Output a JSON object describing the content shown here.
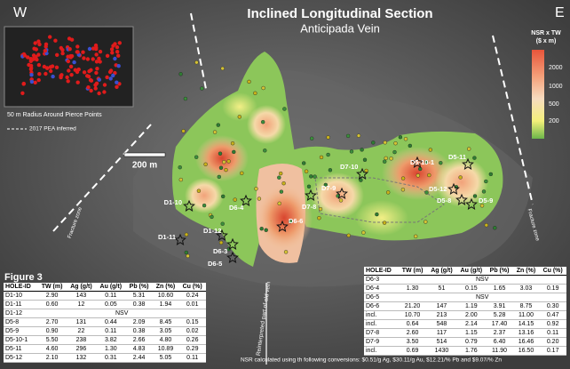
{
  "header": {
    "title": "Inclined Longitudinal Section",
    "subtitle": "Anticipada Vein",
    "west": "W",
    "east": "E"
  },
  "inset": {
    "caption": "50 m Radius Around Pierce Points",
    "legend_note": "2017 PEA inferred"
  },
  "scale_bar": {
    "label": "200 m"
  },
  "color_legend": {
    "title": "NSR x TW",
    "unit": "($ x m)",
    "labels": [
      "2000",
      "1000",
      "500",
      "200"
    ]
  },
  "annotations": {
    "left_fault": "Fracture zone",
    "bottom_note": "Reinterpreted part of old vein",
    "right_fault": "Fracture zone"
  },
  "stars": [
    "D1-10",
    "D6-4",
    "D7-8",
    "D7-9",
    "D7-10",
    "D5-10-1",
    "D5-11",
    "D5-12",
    "D5-8",
    "D5-9",
    "D6-6",
    "D1-11",
    "D1-12",
    "D6-3",
    "D6-5"
  ],
  "figure_label": "Figure 3",
  "table_left": {
    "columns": [
      "HOLE-ID",
      "TW (m)",
      "Ag (g/t)",
      "Au (g/t)",
      "Pb (%)",
      "Zn (%)",
      "Cu (%)"
    ],
    "rows": [
      [
        "D1-10",
        "2.90",
        "143",
        "0.11",
        "5.31",
        "10.60",
        "0.24"
      ],
      [
        "D1-11",
        "0.60",
        "12",
        "0.05",
        "0.38",
        "1.94",
        "0.01"
      ],
      [
        "D1-12",
        "NSV"
      ],
      [
        "D5-8",
        "2.70",
        "131",
        "0.44",
        "2.09",
        "8.45",
        "0.15"
      ],
      [
        "D5-9",
        "0.90",
        "22",
        "0.11",
        "0.38",
        "3.05",
        "0.02"
      ],
      [
        "D5-10-1",
        "5.50",
        "238",
        "3.82",
        "2.66",
        "4.80",
        "0.26"
      ],
      [
        "D5-11",
        "4.60",
        "296",
        "1.30",
        "4.83",
        "10.89",
        "0.29"
      ],
      [
        "D5-12",
        "2.10",
        "132",
        "0.31",
        "2.44",
        "5.05",
        "0.11"
      ]
    ]
  },
  "table_right": {
    "columns": [
      "HOLE-ID",
      "TW (m)",
      "Ag (g/t)",
      "Au (g/t)",
      "Pb (%)",
      "Zn (%)",
      "Cu (%)"
    ],
    "rows": [
      [
        "D6-3",
        "NSV"
      ],
      [
        "D6-4",
        "1.30",
        "51",
        "0.15",
        "1.65",
        "3.03",
        "0.19"
      ],
      [
        "D6-5",
        "NSV"
      ],
      [
        "D6-6",
        "21.20",
        "147",
        "1.19",
        "3.91",
        "8.75",
        "0.30"
      ],
      [
        "incl.",
        "10.70",
        "213",
        "2.00",
        "5.28",
        "11.00",
        "0.47"
      ],
      [
        "incl.",
        "0.64",
        "548",
        "2.14",
        "17.40",
        "14.15",
        "0.92"
      ],
      [
        "D7-8",
        "2.60",
        "117",
        "1.15",
        "2.37",
        "13.16",
        "0.11"
      ],
      [
        "D7-9",
        "3.50",
        "514",
        "0.79",
        "6.40",
        "16.46",
        "0.20"
      ],
      [
        "incl.",
        "0.69",
        "1430",
        "1.76",
        "11.90",
        "16.50",
        "0.17"
      ]
    ]
  },
  "footnote": "NSR calculated using th following conversions: $0.51/g Ag, $30.11/g Au, $12.21/% Pb and $9.07/% Zn"
}
